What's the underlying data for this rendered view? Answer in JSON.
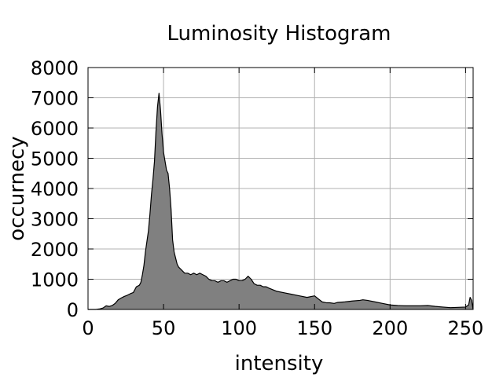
{
  "chart_data": {
    "type": "area",
    "title": "Luminosity Histogram",
    "xlabel": "intensity",
    "ylabel": "occurnecy",
    "xlim": [
      0,
      255
    ],
    "ylim": [
      0,
      8000
    ],
    "xticks": [
      0,
      50,
      100,
      150,
      200,
      250
    ],
    "yticks": [
      0,
      1000,
      2000,
      3000,
      4000,
      5000,
      6000,
      7000,
      8000
    ],
    "xtick_labels": [
      "0",
      "50",
      "100",
      "150",
      "200",
      "250"
    ],
    "ytick_labels": [
      "0",
      "1000",
      "2000",
      "3000",
      "4000",
      "5000",
      "6000",
      "7000",
      "8000"
    ],
    "grid": true,
    "fill_color": "#808080",
    "line_color": "#000000",
    "series": [
      {
        "x": [
          0,
          5,
          8,
          10,
          12,
          14,
          16,
          18,
          20,
          22,
          24,
          26,
          28,
          30,
          32,
          34,
          35,
          36,
          37,
          38,
          39,
          40,
          41,
          42,
          43,
          44,
          45,
          46,
          47,
          48,
          49,
          50,
          51,
          52,
          53,
          54,
          55,
          56,
          57,
          58,
          59,
          60,
          62,
          64,
          66,
          68,
          70,
          72,
          74,
          76,
          78,
          80,
          82,
          84,
          86,
          88,
          90,
          92,
          94,
          96,
          98,
          100,
          102,
          104,
          106,
          108,
          110,
          112,
          114,
          116,
          118,
          120,
          125,
          130,
          135,
          140,
          145,
          150,
          155,
          158,
          160,
          163,
          165,
          170,
          175,
          180,
          182,
          185,
          190,
          195,
          200,
          205,
          210,
          215,
          220,
          225,
          230,
          235,
          240,
          245,
          250,
          252,
          253,
          254,
          255
        ],
        "y": [
          0,
          0,
          20,
          50,
          120,
          100,
          130,
          200,
          320,
          380,
          430,
          470,
          520,
          560,
          750,
          800,
          900,
          1150,
          1450,
          1900,
          2250,
          2600,
          3150,
          3800,
          4300,
          4900,
          5900,
          6700,
          7150,
          6600,
          5800,
          5200,
          4900,
          4600,
          4500,
          4000,
          3300,
          2300,
          1900,
          1700,
          1500,
          1400,
          1300,
          1200,
          1200,
          1150,
          1200,
          1150,
          1200,
          1150,
          1100,
          1000,
          950,
          950,
          900,
          950,
          950,
          900,
          950,
          1000,
          1000,
          950,
          950,
          1000,
          1100,
          1000,
          850,
          800,
          800,
          750,
          750,
          700,
          600,
          550,
          500,
          450,
          400,
          450,
          250,
          220,
          220,
          200,
          230,
          250,
          280,
          300,
          320,
          300,
          250,
          200,
          150,
          130,
          120,
          120,
          120,
          130,
          100,
          80,
          60,
          70,
          80,
          150,
          400,
          300,
          0
        ]
      }
    ]
  }
}
